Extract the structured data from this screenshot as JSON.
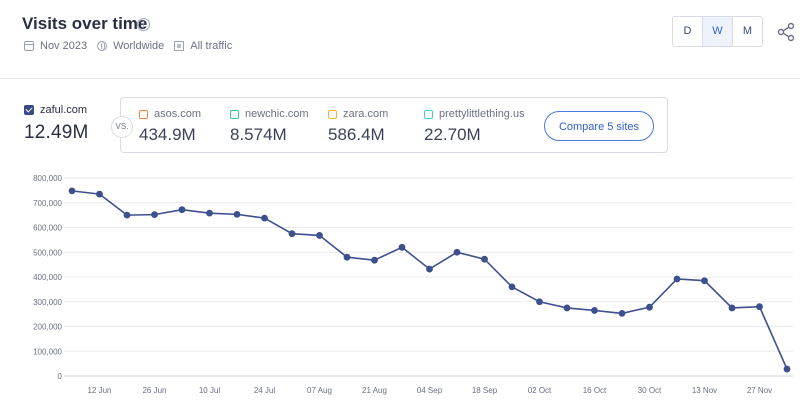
{
  "header": {
    "title": "Visits over time",
    "info_icon": "info-icon",
    "meta": {
      "period": "Nov 2023",
      "region": "Worldwide",
      "traffic": "All traffic"
    },
    "granularity": [
      {
        "label": "D",
        "active": false
      },
      {
        "label": "W",
        "active": true
      },
      {
        "label": "M",
        "active": false
      }
    ],
    "share_icon": "share-icon"
  },
  "main_site": {
    "name": "zaful.com",
    "value": "12.49M",
    "checked": true
  },
  "vs_label": "VS.",
  "competitors": [
    {
      "name": "asos.com",
      "value": "434.9M",
      "color": "#f0883e"
    },
    {
      "name": "newchic.com",
      "value": "8.574M",
      "color": "#36c2a0"
    },
    {
      "name": "zara.com",
      "value": "586.4M",
      "color": "#f2b338"
    },
    {
      "name": "prettylittlething.us",
      "value": "22.70M",
      "color": "#4fc3e8"
    }
  ],
  "compare_button": "Compare 5 sites",
  "colors": {
    "line": "#3e4f8e",
    "accent": "#2f63d8",
    "grid": "#e9ebf1"
  },
  "chart_data": {
    "type": "line",
    "series": [
      {
        "name": "zaful.com",
        "values": [
          748000,
          735000,
          650000,
          652000,
          672000,
          658000,
          653000,
          638000,
          575000,
          568000,
          480000,
          468000,
          520000,
          432000,
          500000,
          472000,
          360000,
          300000,
          275000,
          265000,
          253000,
          278000,
          392000,
          385000,
          275000,
          280000,
          28000
        ]
      }
    ],
    "x_tick_labels": [
      "12 Jun",
      "26 Jun",
      "10 Jul",
      "24 Jul",
      "07 Aug",
      "21 Aug",
      "04 Sep",
      "18 Sep",
      "02 Oct",
      "16 Oct",
      "30 Oct",
      "13 Nov",
      "27 Nov"
    ],
    "y_tick_labels": [
      "0",
      "100,000",
      "200,000",
      "300,000",
      "400,000",
      "500,000",
      "600,000",
      "700,000",
      "800,000"
    ],
    "ylim": [
      0,
      800000
    ],
    "grid": true,
    "legend": "none"
  }
}
